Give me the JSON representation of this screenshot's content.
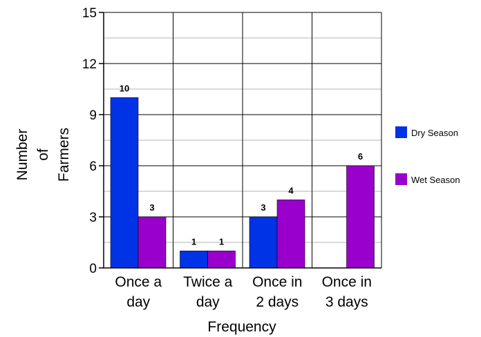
{
  "chart_data": {
    "type": "bar",
    "categories": [
      [
        "Once a",
        "day"
      ],
      [
        "Twice a",
        "day"
      ],
      [
        "Once in",
        "2 days"
      ],
      [
        "Once in",
        "3 days"
      ]
    ],
    "series": [
      {
        "name": "Dry Season",
        "color": "#0033e6",
        "values": [
          10,
          1,
          3,
          0
        ],
        "labels": [
          "10",
          "1",
          "3",
          ""
        ]
      },
      {
        "name": "Wet Season",
        "color": "#9900cc",
        "values": [
          3,
          1,
          4,
          6
        ],
        "labels": [
          "3",
          "1",
          "4",
          "6"
        ]
      }
    ],
    "xlabel": "Frequency",
    "ylabel": [
      "Number",
      "of",
      "Farmers"
    ],
    "ylim": [
      0,
      15
    ],
    "yticks": [
      0,
      3,
      6,
      9,
      12,
      15
    ],
    "minor_grid_step": 1.5,
    "grid": true,
    "legend_position": "right"
  }
}
